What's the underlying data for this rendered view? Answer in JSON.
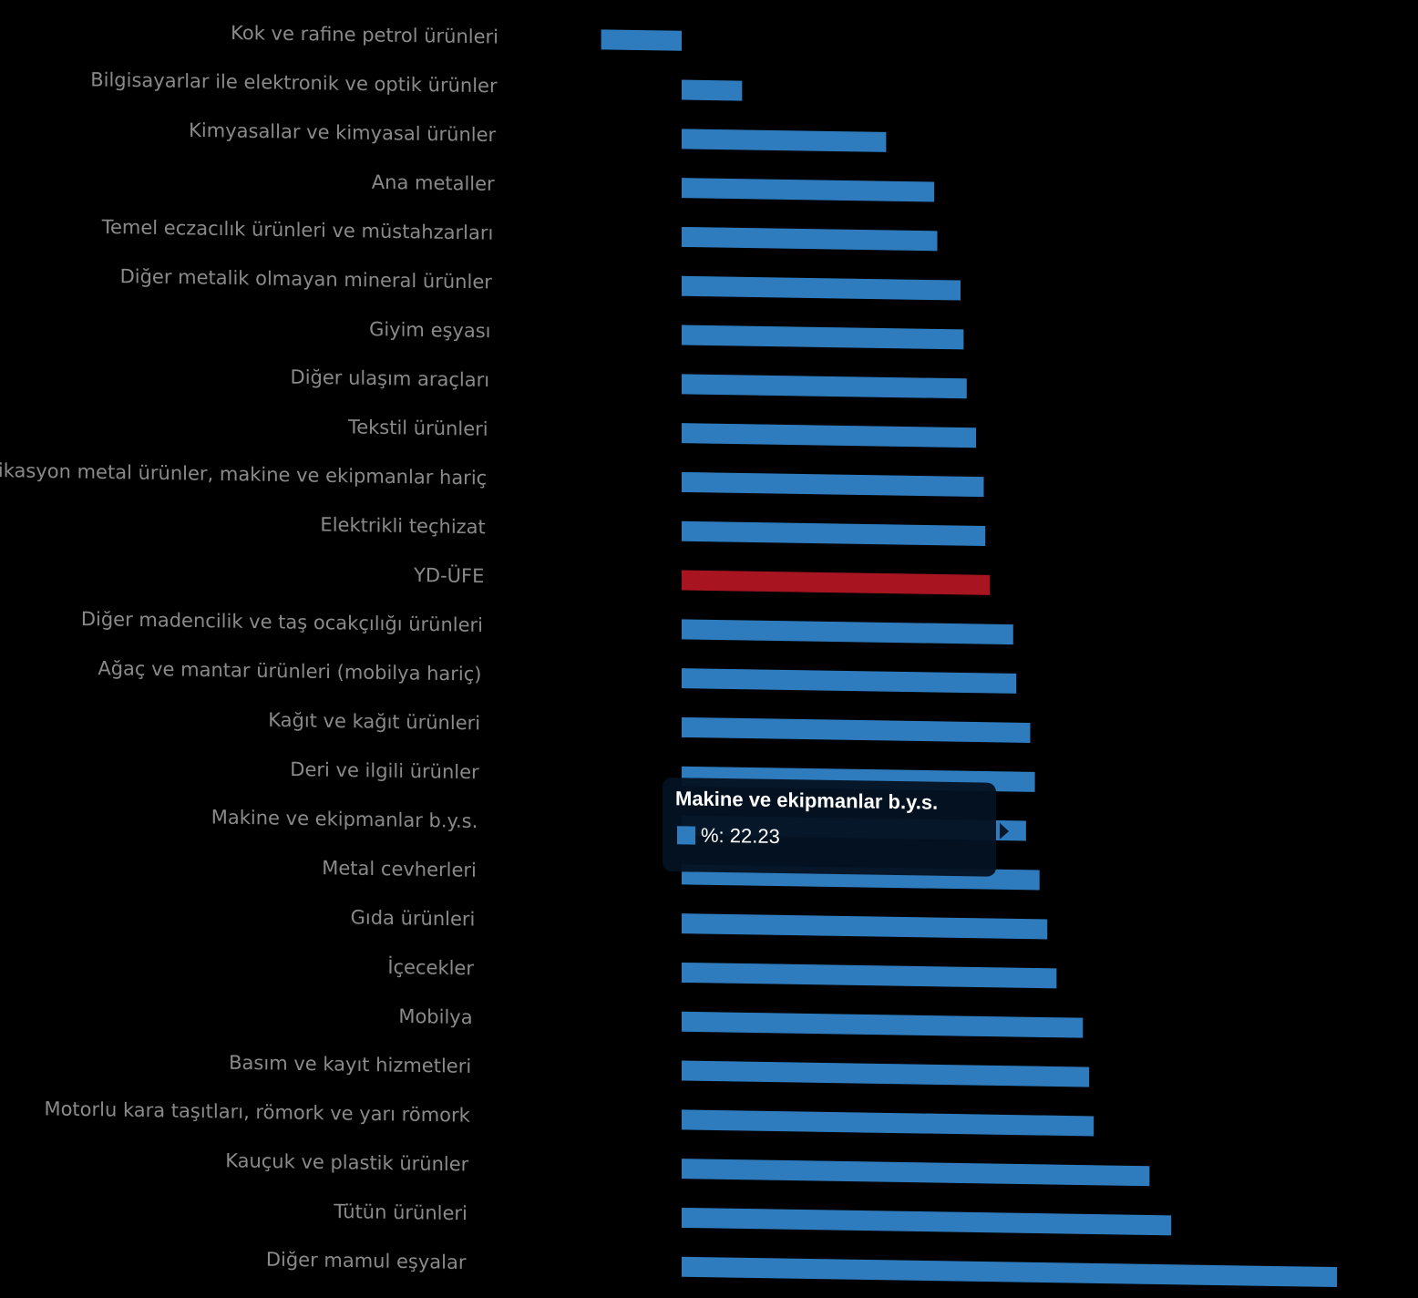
{
  "colors": {
    "bar": "#2e7bbd",
    "highlight": "#a8141f",
    "label": "#8a8a8a",
    "background": "#000000"
  },
  "chart_data": {
    "type": "bar",
    "orientation": "horizontal",
    "title": "",
    "xlabel": "",
    "ylabel": "",
    "xlim": [
      -3,
      44
    ],
    "grid": false,
    "legend": "none",
    "categories": [
      "Kok ve rafine petrol ürünleri",
      "Bilgisayarlar ile elektronik ve optik ürünler",
      "Kimyasallar ve kimyasal ürünler",
      "Ana metaller",
      "Temel eczacılık ürünleri ve müstahzarları",
      "Diğer metalik olmayan mineral ürünler",
      "Giyim eşyası",
      "Diğer ulaşım araçları",
      "Tekstil ürünleri",
      "Fabrikasyon metal ürünler, makine ve ekipmanlar hariç",
      "Elektrikli teçhizat",
      "YD-ÜFE",
      "Diğer madencilik ve taş ocakçılığı ürünleri",
      "Ağaç ve mantar ürünleri (mobilya hariç)",
      "Kağıt ve kağıt ürünleri",
      "Deri ve ilgili ürünler",
      "Makine ve ekipmanlar b.y.s.",
      "Metal cevherleri",
      "Gıda ürünleri",
      "İçecekler",
      "Mobilya",
      "Basım ve kayıt hizmetleri",
      "Motorlu kara taşıtları, römork ve yarı römork",
      "Kauçuk ve plastik ürünler",
      "Tütün ürünleri",
      "Diğer mamul eşyalar"
    ],
    "series": [
      {
        "values": [
          -5.2,
          3.9,
          13.2,
          16.3,
          16.5,
          18.0,
          18.2,
          18.4,
          19.0,
          19.5,
          19.6,
          19.9,
          21.4,
          21.6,
          22.5,
          22.8,
          22.23,
          23.1,
          23.6,
          24.2,
          25.9,
          26.3,
          26.6,
          30.2,
          31.6,
          42.3
        ]
      }
    ],
    "highlight_category": "YD-ÜFE"
  },
  "tooltip": {
    "title": "Makine ve ekipmanlar b.y.s.",
    "value_text": "%: 22.23"
  }
}
